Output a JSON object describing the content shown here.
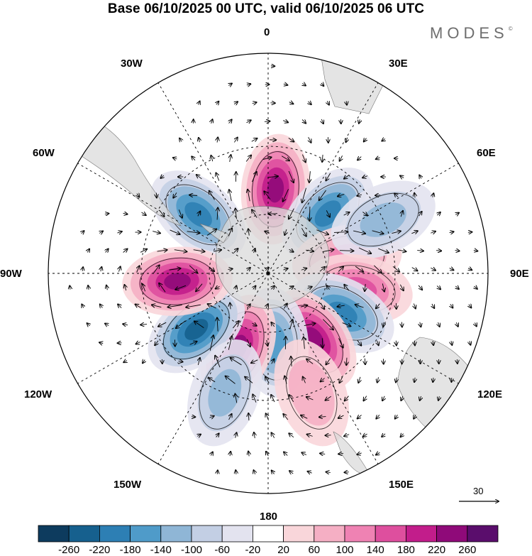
{
  "title": "Base 06/10/2025 00 UTC, valid 06/10/2025 06 UTC",
  "brand": {
    "name": "MODES",
    "mark": "©"
  },
  "longitude_labels": {
    "n0": "0",
    "n30e": "30E",
    "n60e": "60E",
    "n90e": "90E",
    "n120e": "120E",
    "n150e": "150E",
    "n180": "180",
    "n150w": "150W",
    "n120w": "120W",
    "n90w": "90W",
    "n60w": "60W",
    "n30w": "30W"
  },
  "vector_reference": {
    "value": "30"
  },
  "colorbar": {
    "ticks": [
      "-260",
      "-220",
      "-180",
      "-140",
      "-100",
      "-60",
      "-20",
      "20",
      "60",
      "100",
      "140",
      "180",
      "220",
      "260"
    ],
    "colors": [
      "#0d3b5e",
      "#16608e",
      "#2d7fb4",
      "#4f9bc9",
      "#8fb6d6",
      "#c3cfe4",
      "#e3e3ef",
      "#ffffff",
      "#f9d6da",
      "#f5afc4",
      "#ef82b3",
      "#de4f9e",
      "#c21d8b",
      "#8f0a79",
      "#5a0d6c"
    ]
  },
  "anomaly_centers": [
    {
      "sign": "positive",
      "lon": 5,
      "lat": -48,
      "level": 220
    },
    {
      "sign": "negative",
      "lon": -50,
      "lat": -45,
      "level": -180
    },
    {
      "sign": "negative",
      "lon": 45,
      "lat": -48,
      "level": -180
    },
    {
      "sign": "positive",
      "lon": 80,
      "lat": -50,
      "level": 100
    },
    {
      "sign": "negative",
      "lon": 65,
      "lat": -30,
      "level": -100
    },
    {
      "sign": "positive",
      "lon": 100,
      "lat": -45,
      "level": 140
    },
    {
      "sign": "negative",
      "lon": 118,
      "lat": -48,
      "level": -180
    },
    {
      "sign": "positive",
      "lon": 145,
      "lat": -50,
      "level": 220
    },
    {
      "sign": "negative",
      "lon": 175,
      "lat": -55,
      "level": -140
    },
    {
      "sign": "positive",
      "lon": -158,
      "lat": -50,
      "level": 220
    },
    {
      "sign": "negative",
      "lon": -128,
      "lat": -45,
      "level": -220
    },
    {
      "sign": "positive",
      "lon": -95,
      "lat": -45,
      "level": 220
    },
    {
      "sign": "negative",
      "lon": -160,
      "lat": -30,
      "level": -100
    },
    {
      "sign": "positive",
      "lon": 160,
      "lat": -30,
      "level": 60
    }
  ]
}
